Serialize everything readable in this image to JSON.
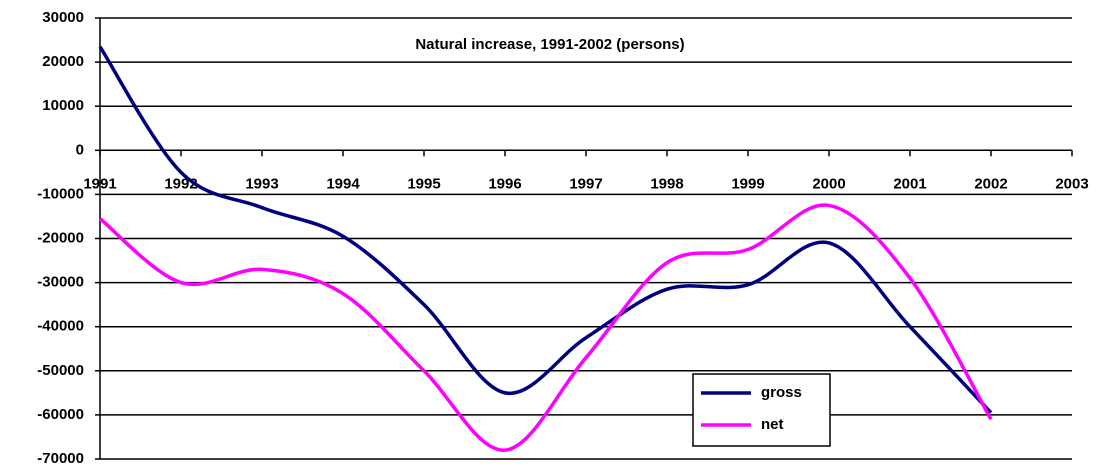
{
  "chart_data": {
    "type": "line",
    "title": "Natural increase, 1991-2002 (persons)",
    "x": [
      1991,
      1992,
      1993,
      1994,
      1995,
      1996,
      1997,
      1998,
      1999,
      2000,
      2001,
      2002
    ],
    "series": [
      {
        "name": "gross",
        "color": "#000080",
        "values": [
          23500,
          -5000,
          -13000,
          -19500,
          -35000,
          -55000,
          -42500,
          -31500,
          -30500,
          -21000,
          -40000,
          -59500
        ]
      },
      {
        "name": "net",
        "color": "#ff00ff",
        "values": [
          -15500,
          -30000,
          -27000,
          -32500,
          -50000,
          -68000,
          -47000,
          -25500,
          -22500,
          -12500,
          -29000,
          -61000
        ]
      }
    ],
    "xlim": [
      1991,
      2003
    ],
    "xticks": [
      1991,
      1992,
      1993,
      1994,
      1995,
      1996,
      1997,
      1998,
      1999,
      2000,
      2001,
      2002,
      2003
    ],
    "ylim": [
      -70000,
      30000
    ],
    "yticks": [
      -70000,
      -60000,
      -50000,
      -40000,
      -30000,
      -20000,
      -10000,
      0,
      10000,
      20000,
      30000
    ],
    "grid": true,
    "smooth": true,
    "legend": "lower-right"
  }
}
